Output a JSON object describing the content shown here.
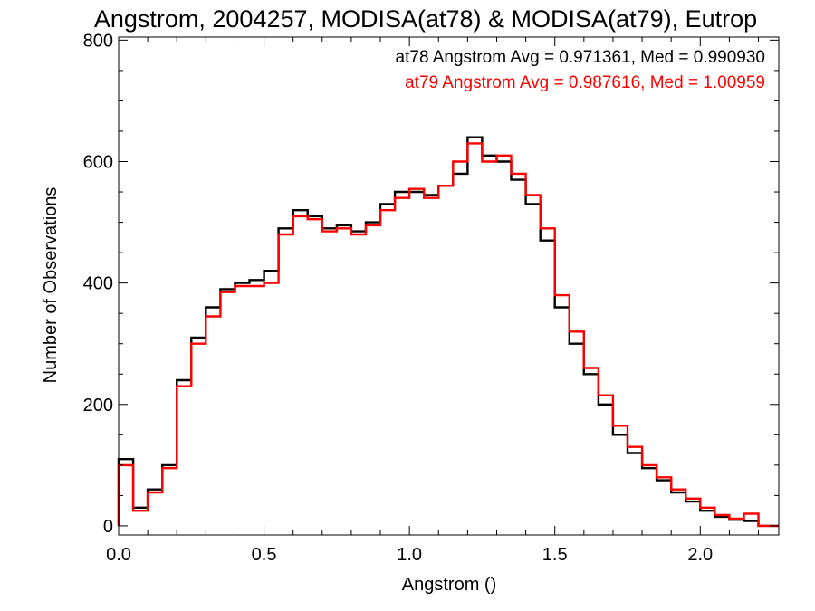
{
  "chart_data": {
    "type": "line",
    "title": "Angstrom, 2004257, MODISA(at78) & MODISA(at79), Eutrop",
    "xlabel": "Angstrom ()",
    "ylabel": "Number of Observations",
    "xlim": [
      0.0,
      2.27
    ],
    "ylim": [
      -15,
      805
    ],
    "xticks": [
      0.0,
      0.5,
      1.0,
      1.5,
      2.0
    ],
    "xtick_labels": [
      "0.0",
      "0.5",
      "1.0",
      "1.5",
      "2.0"
    ],
    "yticks": [
      0,
      200,
      400,
      600,
      800
    ],
    "ytick_labels": [
      "0",
      "200",
      "400",
      "600",
      "800"
    ],
    "grid": false,
    "legend_position": "top-right",
    "annotations": [
      {
        "text": "at78 Angstrom Avg = 0.971361, Med = 0.990930",
        "color": "#000000"
      },
      {
        "text": "at79 Angstrom Avg = 0.987616, Med = 1.00959",
        "color": "#ff0000"
      }
    ],
    "series": [
      {
        "color": "#000000",
        "x": [
          0.0,
          0.05,
          0.1,
          0.15,
          0.2,
          0.25,
          0.3,
          0.35,
          0.4,
          0.45,
          0.5,
          0.55,
          0.6,
          0.65,
          0.7,
          0.75,
          0.8,
          0.85,
          0.9,
          0.95,
          1.0,
          1.05,
          1.1,
          1.15,
          1.2,
          1.25,
          1.3,
          1.35,
          1.4,
          1.45,
          1.5,
          1.55,
          1.6,
          1.65,
          1.7,
          1.75,
          1.8,
          1.85,
          1.9,
          1.95,
          2.0,
          2.05,
          2.1,
          2.15,
          2.2,
          2.27
        ],
        "y": [
          110,
          30,
          60,
          100,
          240,
          310,
          360,
          390,
          400,
          405,
          420,
          490,
          520,
          510,
          490,
          495,
          485,
          500,
          530,
          550,
          550,
          545,
          560,
          580,
          640,
          610,
          600,
          570,
          530,
          470,
          360,
          300,
          250,
          200,
          150,
          120,
          95,
          75,
          55,
          40,
          25,
          15,
          10,
          8,
          0,
          0
        ]
      },
      {
        "color": "#ff0000",
        "x": [
          0.0,
          0.05,
          0.1,
          0.15,
          0.2,
          0.25,
          0.3,
          0.35,
          0.4,
          0.45,
          0.5,
          0.55,
          0.6,
          0.65,
          0.7,
          0.75,
          0.8,
          0.85,
          0.9,
          0.95,
          1.0,
          1.05,
          1.1,
          1.15,
          1.2,
          1.25,
          1.3,
          1.35,
          1.4,
          1.45,
          1.5,
          1.55,
          1.6,
          1.65,
          1.7,
          1.75,
          1.8,
          1.85,
          1.9,
          1.95,
          2.0,
          2.05,
          2.1,
          2.15,
          2.2,
          2.27
        ],
        "y": [
          100,
          25,
          55,
          95,
          230,
          300,
          345,
          385,
          395,
          395,
          400,
          480,
          510,
          505,
          485,
          490,
          480,
          495,
          520,
          540,
          555,
          540,
          560,
          600,
          630,
          600,
          610,
          580,
          545,
          490,
          380,
          320,
          260,
          215,
          165,
          130,
          100,
          80,
          60,
          45,
          30,
          18,
          12,
          20,
          0,
          0
        ]
      }
    ]
  }
}
